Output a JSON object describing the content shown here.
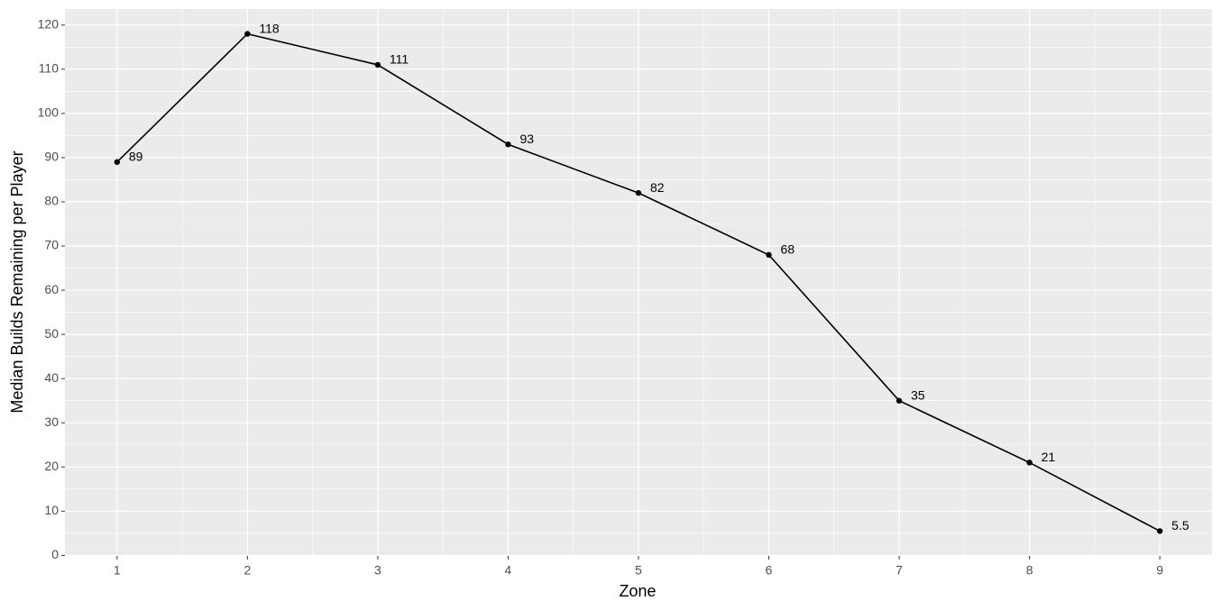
{
  "chart_data": {
    "type": "line",
    "x_label": "Zone",
    "y_label": "Median Builds Remaining per Player",
    "x": [
      1,
      2,
      3,
      4,
      5,
      6,
      7,
      8,
      9
    ],
    "series": [
      {
        "color": "#000000",
        "values": [
          89,
          118,
          111,
          93,
          82,
          68,
          35,
          21,
          5.5
        ]
      }
    ],
    "xlim": [
      0.6,
      9.4
    ],
    "xticks": [
      1,
      2,
      3,
      4,
      5,
      6,
      7,
      8,
      9
    ],
    "ylim": [
      -0.125,
      123.625
    ],
    "yticks": [
      0,
      10,
      20,
      30,
      40,
      50,
      60,
      70,
      80,
      90,
      100,
      110,
      120
    ],
    "grid": true,
    "data_labels": true
  }
}
